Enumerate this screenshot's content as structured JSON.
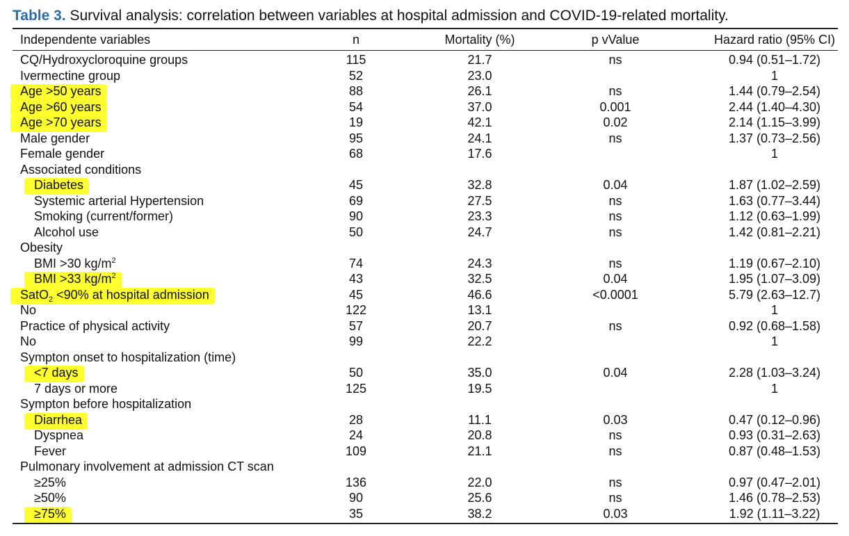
{
  "caption": {
    "label": "Table 3.",
    "text": " Survival analysis: correlation between variables at hospital admission and COVID-19-related mortality."
  },
  "colors": {
    "label": "#2a6cb0",
    "highlight": "#ffff2e"
  },
  "headers": {
    "variable": "Independente variables",
    "n": "n",
    "mortality": "Mortality (%)",
    "p": "p vValue",
    "hr": "Hazard ratio (95% CI)"
  },
  "rows": [
    {
      "var": "CQ/Hydroxycloroquine groups",
      "n": "115",
      "mort": "21.7",
      "p": "ns",
      "hr": "0.94 (0.51–1.72)"
    },
    {
      "var": "Ivermectine group",
      "n": "52",
      "mort": "23.0",
      "p": "",
      "hr": "1"
    },
    {
      "var": "Age >50 years",
      "n": "88",
      "mort": "26.1",
      "p": "ns",
      "hr": "1.44 (0.79–2.54)",
      "highlight": true
    },
    {
      "var": "Age >60 years",
      "n": "54",
      "mort": "37.0",
      "p": "0.001",
      "hr": "2.44 (1.40–4.30)",
      "highlight": true
    },
    {
      "var": "Age >70 years",
      "n": "19",
      "mort": "42.1",
      "p": "0.02",
      "hr": "2.14 (1.15–3.99)",
      "highlight": true
    },
    {
      "var": "Male gender",
      "n": "95",
      "mort": "24.1",
      "p": "ns",
      "hr": "1.37 (0.73–2.56)"
    },
    {
      "var": "Female gender",
      "n": "68",
      "mort": "17.6",
      "p": "",
      "hr": "1"
    },
    {
      "var": "Associated conditions",
      "n": "",
      "mort": "",
      "p": "",
      "hr": ""
    },
    {
      "var": "Diabetes",
      "n": "45",
      "mort": "32.8",
      "p": "0.04",
      "hr": "1.87 (1.02–2.59)",
      "indent": true,
      "highlight": true
    },
    {
      "var": "Systemic arterial Hypertension",
      "n": "69",
      "mort": "27.5",
      "p": "ns",
      "hr": "1.63 (0.77–3.44)",
      "indent": true
    },
    {
      "var": "Smoking (current/former)",
      "n": "90",
      "mort": "23.3",
      "p": "ns",
      "hr": "1.12 (0.63–1.99)",
      "indent": true
    },
    {
      "var": "Alcohol use",
      "n": "50",
      "mort": "24.7",
      "p": "ns",
      "hr": "1.42 (0.81–2.21)",
      "indent": true
    },
    {
      "var": "Obesity",
      "n": "",
      "mort": "",
      "p": "",
      "hr": ""
    },
    {
      "var": "BMI >30 kg/m",
      "sup": "2",
      "n": "74",
      "mort": "24.3",
      "p": "ns",
      "hr": "1.19 (0.67–2.10)",
      "indent": true
    },
    {
      "var": "BMI >33 kg/m",
      "sup": "2",
      "n": "43",
      "mort": "32.5",
      "p": "0.04",
      "hr": "1.95 (1.07–3.09)",
      "indent": true,
      "highlight": true
    },
    {
      "var": "SatO",
      "sub": "2",
      "var_rest": " <90% at hospital admission",
      "n": "45",
      "mort": "46.6",
      "p": "<0.0001",
      "hr": "5.79 (2.63–12.7)",
      "highlight": true
    },
    {
      "var": "No",
      "n": "122",
      "mort": "13.1",
      "p": "",
      "hr": "1"
    },
    {
      "var": "Practice of physical activity",
      "n": "57",
      "mort": "20.7",
      "p": "ns",
      "hr": "0.92 (0.68–1.58)"
    },
    {
      "var": "No",
      "n": "99",
      "mort": "22.2",
      "p": "",
      "hr": "1"
    },
    {
      "var": "Sympton onset to hospitalization (time)",
      "n": "",
      "mort": "",
      "p": "",
      "hr": ""
    },
    {
      "var": "<7 days",
      "n": "50",
      "mort": "35.0",
      "p": "0.04",
      "hr": "2.28 (1.03–3.24)",
      "indent": true,
      "highlight": true
    },
    {
      "var": "7 days or more",
      "n": "125",
      "mort": "19.5",
      "p": "",
      "hr": "1",
      "indent": true
    },
    {
      "var": "Sympton before hospitalization",
      "n": "",
      "mort": "",
      "p": "",
      "hr": ""
    },
    {
      "var": "Diarrhea",
      "n": "28",
      "mort": "11.1",
      "p": "0.03",
      "hr": "0.47 (0.12–0.96)",
      "indent": true,
      "highlight": true
    },
    {
      "var": "Dyspnea",
      "n": "24",
      "mort": "20.8",
      "p": "ns",
      "hr": "0.93 (0.31–2.63)",
      "indent": true
    },
    {
      "var": "Fever",
      "n": "109",
      "mort": "21.1",
      "p": "ns",
      "hr": "0.87 (0.48–1.53)",
      "indent": true
    },
    {
      "var": "Pulmonary involvement at admission CT scan",
      "n": "",
      "mort": "",
      "p": "",
      "hr": ""
    },
    {
      "var": "≥25%",
      "n": "136",
      "mort": "22.0",
      "p": "ns",
      "hr": "0.97 (0.47–2.01)",
      "indent": true
    },
    {
      "var": "≥50%",
      "n": "90",
      "mort": "25.6",
      "p": "ns",
      "hr": "1.46 (0.78–2.53)",
      "indent": true
    },
    {
      "var": "≥75%",
      "n": "35",
      "mort": "38.2",
      "p": "0.03",
      "hr": "1.92 (1.11–3.22)",
      "indent": true,
      "highlight": true
    }
  ]
}
